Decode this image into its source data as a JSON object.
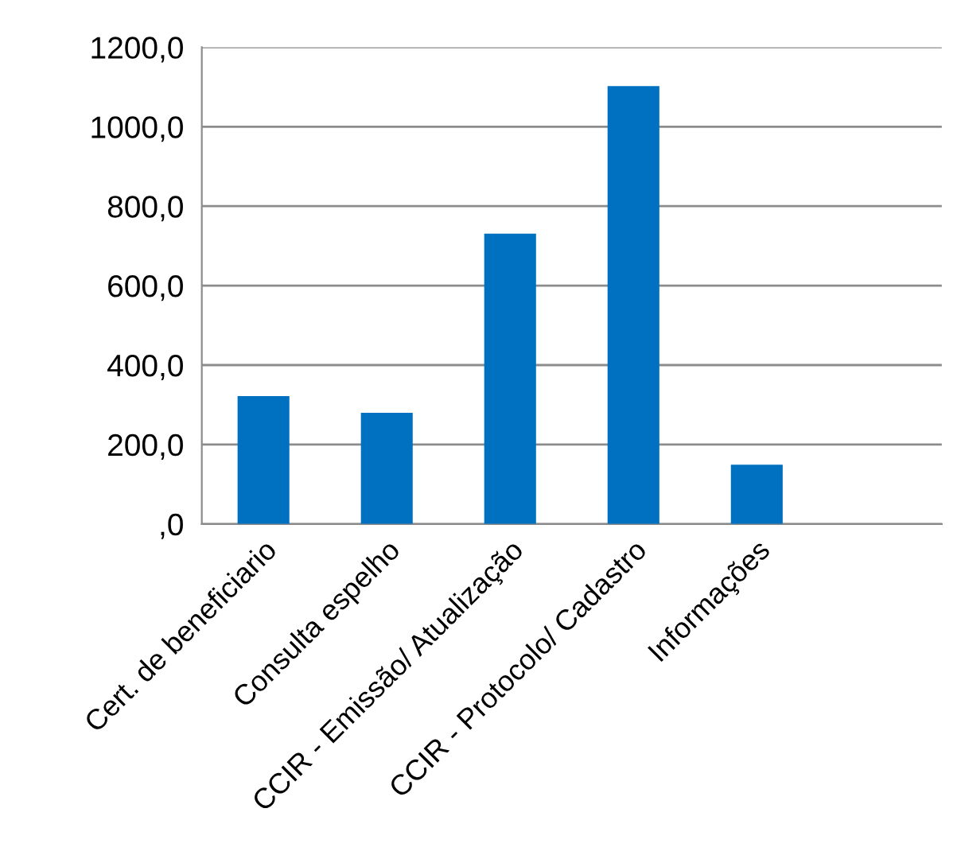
{
  "chart_data": {
    "type": "bar",
    "categories": [
      "Cert. de beneficiario",
      "Consulta espelho",
      "CCIR - Emissão/ Atualização",
      "CCIR - Protocolo/ Cadastro",
      "Informações",
      null
    ],
    "values": [
      322,
      280,
      731,
      1102,
      149,
      null
    ],
    "color": "#0070c0",
    "ylim": [
      0,
      1200
    ],
    "yticks": [
      {
        "value": 0,
        "label": ",0"
      },
      {
        "value": 200,
        "label": "200,0"
      },
      {
        "value": 400,
        "label": "400,0"
      },
      {
        "value": 600,
        "label": "600,0"
      },
      {
        "value": 800,
        "label": "800,0"
      },
      {
        "value": 1000,
        "label": "1000,0"
      },
      {
        "value": 1200,
        "label": "1200,0"
      }
    ],
    "grid": "y",
    "legend": false
  }
}
